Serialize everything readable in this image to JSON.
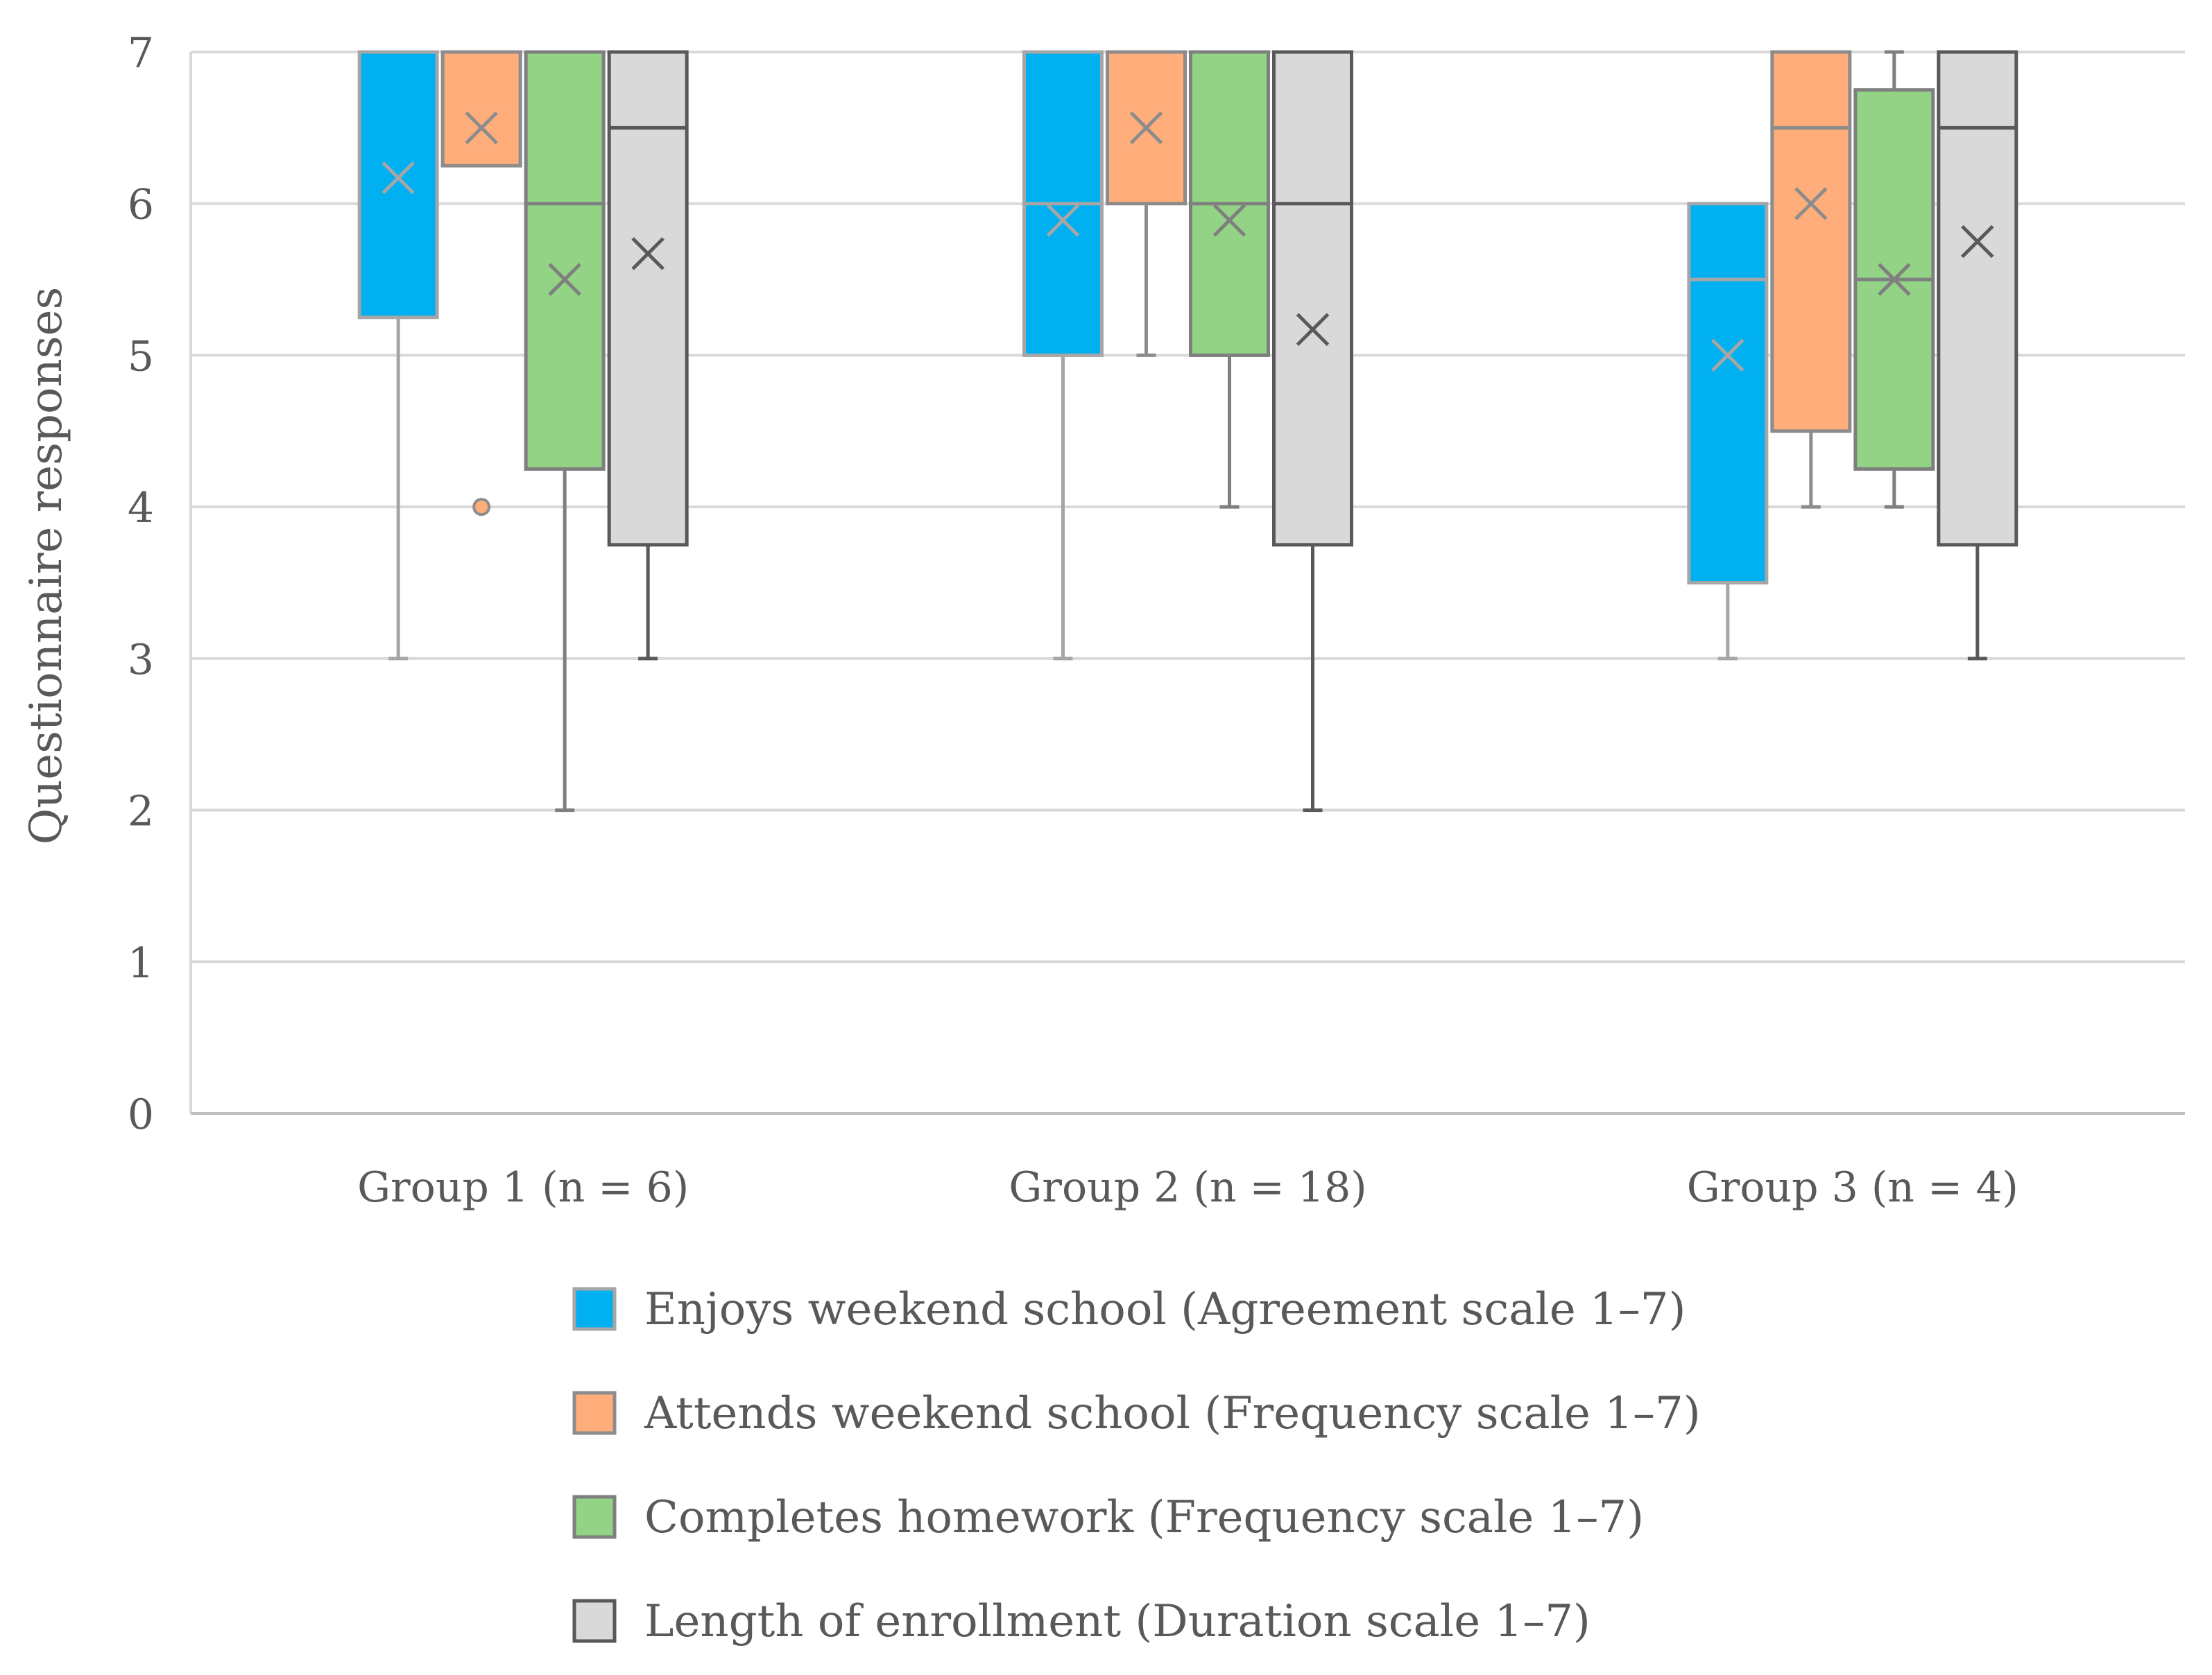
{
  "chart_data": {
    "type": "boxplot",
    "title": "",
    "xlabel": "",
    "ylabel": "Questionnaire responses",
    "ylim": [
      0,
      7
    ],
    "yticks": [
      "0",
      "1",
      "2",
      "3",
      "4",
      "5",
      "6",
      "7"
    ],
    "grid": true,
    "legend_position": "bottom",
    "categories": [
      "Group 1 (n = 6)",
      "Group 2 (n = 18)",
      "Group 3 (n = 4)"
    ],
    "series": [
      {
        "name": "Enjoys weekend school (Agreement scale 1–7)",
        "color": "#00B0F0",
        "stroke": "#A6A6A6",
        "boxes": [
          {
            "min": 3,
            "q1": 5.25,
            "median": 7,
            "q3": 7,
            "max": 7,
            "mean": 6.17,
            "outliers": []
          },
          {
            "min": 3,
            "q1": 5,
            "median": 6,
            "q3": 7,
            "max": 7,
            "mean": 5.89,
            "outliers": []
          },
          {
            "min": 3,
            "q1": 3.5,
            "median": 5.5,
            "q3": 6,
            "max": 6,
            "mean": 5,
            "outliers": []
          }
        ]
      },
      {
        "name": "Attends weekend school (Frequency scale 1–7)",
        "color": "#FFAD7A",
        "stroke": "#8C8C8C",
        "boxes": [
          {
            "min": 6.25,
            "q1": 6.25,
            "median": 7,
            "q3": 7,
            "max": 7,
            "mean": 6.5,
            "outliers": [
              4
            ]
          },
          {
            "min": 5,
            "q1": 6,
            "median": 7,
            "q3": 7,
            "max": 7,
            "mean": 6.5,
            "outliers": []
          },
          {
            "min": 4,
            "q1": 4.5,
            "median": 6.5,
            "q3": 7,
            "max": 7,
            "mean": 6,
            "outliers": []
          }
        ]
      },
      {
        "name": "Completes homework (Frequency scale 1–7)",
        "color": "#92D386",
        "stroke": "#7F7F7F",
        "boxes": [
          {
            "min": 2,
            "q1": 4.25,
            "median": 6,
            "q3": 7,
            "max": 7,
            "mean": 5.5,
            "outliers": []
          },
          {
            "min": 4,
            "q1": 5,
            "median": 6,
            "q3": 7,
            "max": 7,
            "mean": 5.89,
            "outliers": []
          },
          {
            "min": 4,
            "q1": 4.25,
            "median": 5.5,
            "q3": 6.75,
            "max": 7,
            "mean": 5.5,
            "outliers": []
          }
        ]
      },
      {
        "name": "Length of enrollment (Duration scale 1–7)",
        "color": "#D9D9D9",
        "stroke": "#595959",
        "boxes": [
          {
            "min": 3,
            "q1": 3.75,
            "median": 6.5,
            "q3": 7,
            "max": 7,
            "mean": 5.67,
            "outliers": []
          },
          {
            "min": 2,
            "q1": 3.75,
            "median": 6,
            "q3": 7,
            "max": 7,
            "mean": 5.17,
            "outliers": []
          },
          {
            "min": 3,
            "q1": 3.75,
            "median": 6.5,
            "q3": 7,
            "max": 7,
            "mean": 5.75,
            "outliers": []
          }
        ]
      }
    ]
  }
}
